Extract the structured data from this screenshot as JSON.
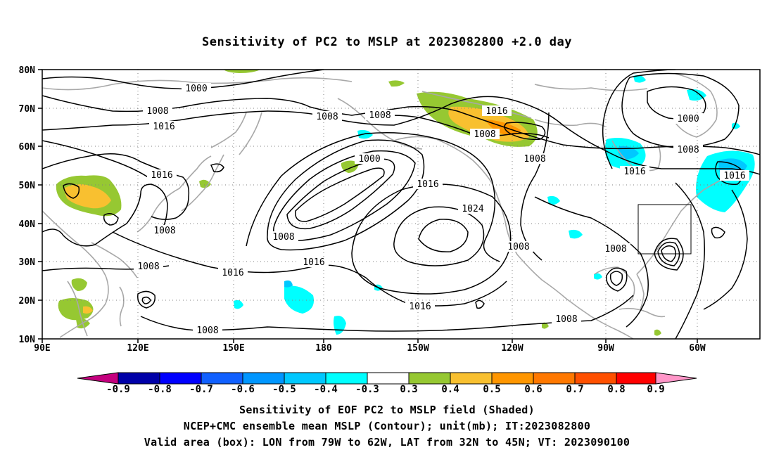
{
  "title": "Sensitivity of PC2 to MSLP at 2023082800 +2.0 day",
  "axes": {
    "lat_labels": [
      "80N",
      "70N",
      "60N",
      "50N",
      "40N",
      "30N",
      "20N",
      "10N"
    ],
    "lon_labels": [
      "90E",
      "120E",
      "150E",
      "180",
      "150W",
      "120W",
      "90W",
      "60W"
    ]
  },
  "contour_labels": [
    "1000",
    "1008",
    "1016",
    "1008",
    "1008",
    "1016",
    "1008",
    "1000",
    "1008",
    "1016",
    "1008",
    "1016",
    "1008",
    "1000",
    "1016",
    "1016",
    "1008",
    "1008",
    "1016",
    "1024",
    "1008",
    "1008",
    "1008",
    "1016",
    "1008"
  ],
  "shading": {
    "colors": {
      "neg_0_9": "#c4007e",
      "neg_0_8": "#0000a8",
      "neg_0_7": "#0000ff",
      "neg_0_6": "#1060ff",
      "neg_0_5": "#0096ff",
      "neg_0_4": "#00c8ff",
      "neg_0_3": "#00ffff",
      "neutral": "#ffffff",
      "pos_0_3": "#96c832",
      "pos_0_4": "#f8c030",
      "pos_0_5": "#ff9600",
      "pos_0_6": "#ff7800",
      "pos_0_7": "#ff5000",
      "pos_0_8": "#ff2800",
      "pos_0_9": "#ff0000",
      "pos_over": "#ff96c8"
    },
    "regions": [
      {
        "name": "mongolia",
        "value": 0.4
      },
      {
        "name": "bering-strait",
        "value": 0.3
      },
      {
        "name": "alaska-north",
        "value": 0.4
      },
      {
        "name": "hudson-bay",
        "value": -0.4
      },
      {
        "name": "newfoundland",
        "value": -0.4
      },
      {
        "name": "philippine-sea",
        "value": 0.3
      },
      {
        "name": "central-pacific",
        "value": -0.3
      }
    ]
  },
  "colorbar": {
    "labels": [
      "-0.9",
      "-0.8",
      "-0.7",
      "-0.6",
      "-0.5",
      "-0.4",
      "-0.3",
      "0.3",
      "0.4",
      "0.5",
      "0.6",
      "0.7",
      "0.8",
      "0.9"
    ]
  },
  "footer": {
    "line1": "Sensitivity of EOF PC2 to MSLP field (Shaded)",
    "line2": "NCEP+CMC ensemble mean MSLP (Contour); unit(mb); IT:2023082800",
    "line3": "Valid area (box): LON from 79W to 62W, LAT from 32N to 45N; VT: 2023090100"
  }
}
